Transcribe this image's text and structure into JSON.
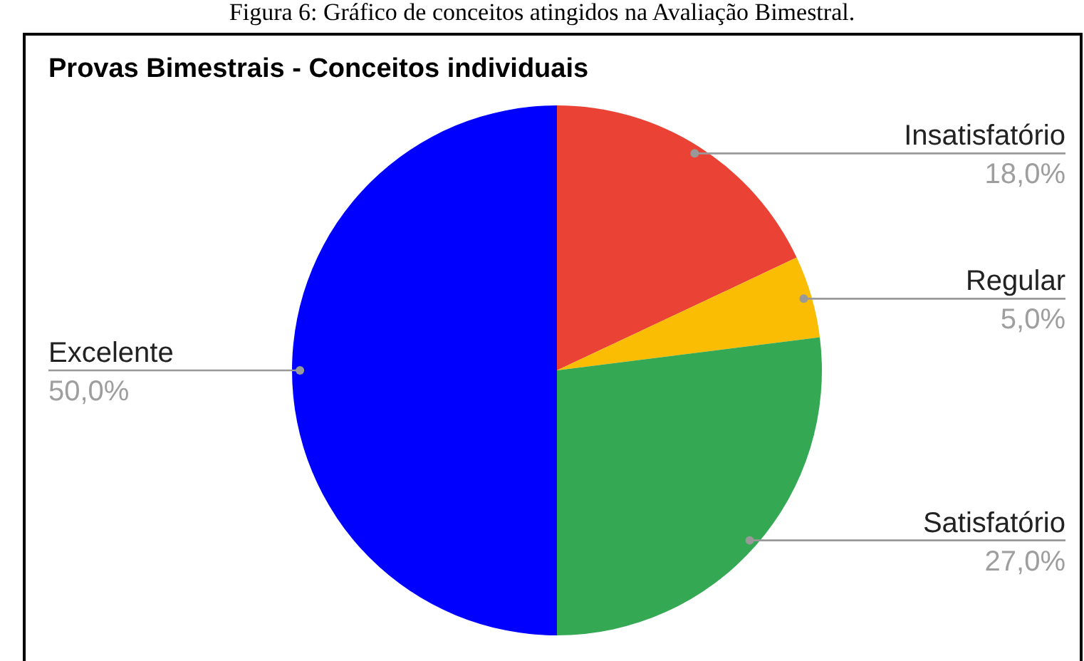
{
  "chart_data": {
    "type": "pie",
    "title": "Provas Bimestrais - Conceitos individuais",
    "annotations": [
      "Figura 6: Gráfico de conceitos atingidos na Avaliação Bimestral."
    ],
    "categories": [
      "Insatisfatório",
      "Regular",
      "Satisfatório",
      "Excelente"
    ],
    "values": [
      18,
      5,
      27,
      50
    ],
    "value_labels": [
      "18,0%",
      "5,0%",
      "27,0%",
      "50,0%"
    ],
    "colors": [
      "#ea4335",
      "#fbbc04",
      "#34a853",
      "#0000ff"
    ],
    "legend": false
  }
}
